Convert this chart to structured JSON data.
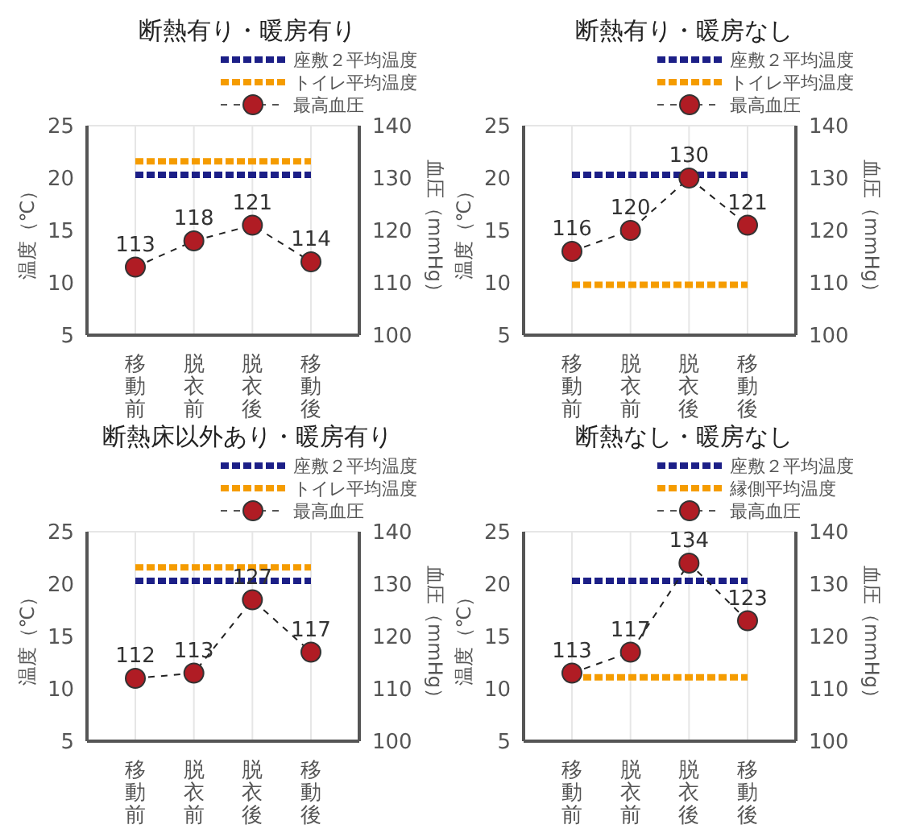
{
  "chart_data": [
    {
      "type": "line",
      "title": "断熱有り・暖房有り",
      "ylabel": "温度（℃）",
      "y2label": "血圧（mmHg）",
      "categories": [
        "移動前",
        "脱衣前",
        "脱衣後",
        "移動後"
      ],
      "ylim": [
        5,
        25
      ],
      "yticks": [
        5,
        10,
        15,
        20,
        25
      ],
      "y2lim": [
        100,
        140
      ],
      "y2ticks": [
        100,
        110,
        120,
        130,
        140
      ],
      "grid": true,
      "legend": "top right",
      "series": [
        {
          "name": "座敷２平均温度",
          "color": "#1c1f87",
          "values": [
            20.3,
            20.3,
            20.3,
            20.3
          ],
          "line_style": "dashed",
          "marker": "none"
        },
        {
          "name": "トイレ平均温度",
          "color": "#f59c00",
          "values": [
            21.6,
            21.6,
            21.6,
            21.6
          ],
          "line_style": "dashed",
          "marker": "none"
        },
        {
          "name": "最高血圧",
          "color": "#b01c24",
          "axis": "y2",
          "values": [
            113,
            118,
            121,
            114
          ],
          "value_labels": [
            "113",
            "118",
            "121",
            "114"
          ],
          "line_style": "dashed",
          "marker": "circle"
        }
      ]
    },
    {
      "type": "line",
      "title": "断熱有り・暖房なし",
      "ylabel": "温度（℃）",
      "y2label": "血圧（mmHg）",
      "categories": [
        "移動前",
        "脱衣前",
        "脱衣後",
        "移動後"
      ],
      "ylim": [
        5,
        25
      ],
      "yticks": [
        5,
        10,
        15,
        20,
        25
      ],
      "y2lim": [
        100,
        140
      ],
      "y2ticks": [
        100,
        110,
        120,
        130,
        140
      ],
      "grid": true,
      "legend": "top right",
      "series": [
        {
          "name": "座敷２平均温度",
          "color": "#1c1f87",
          "values": [
            20.3,
            20.3,
            20.3,
            20.3
          ],
          "line_style": "dashed",
          "marker": "none"
        },
        {
          "name": "トイレ平均温度",
          "color": "#f59c00",
          "values": [
            9.8,
            9.8,
            9.8,
            9.8
          ],
          "line_style": "dashed",
          "marker": "none"
        },
        {
          "name": "最高血圧",
          "color": "#b01c24",
          "axis": "y2",
          "values": [
            116,
            120,
            130,
            121
          ],
          "value_labels": [
            "116",
            "120",
            "130",
            "121"
          ],
          "line_style": "dashed",
          "marker": "circle"
        }
      ]
    },
    {
      "type": "line",
      "title": "断熱床以外あり・暖房有り",
      "ylabel": "温度（℃）",
      "y2label": "血圧（mmHg）",
      "categories": [
        "移動前",
        "脱衣前",
        "脱衣後",
        "移動後"
      ],
      "ylim": [
        5,
        25
      ],
      "yticks": [
        5,
        10,
        15,
        20,
        25
      ],
      "y2lim": [
        100,
        140
      ],
      "y2ticks": [
        100,
        110,
        120,
        130,
        140
      ],
      "grid": true,
      "legend": "top right",
      "series": [
        {
          "name": "座敷２平均温度",
          "color": "#1c1f87",
          "values": [
            20.3,
            20.3,
            20.3,
            20.3
          ],
          "line_style": "dashed",
          "marker": "none"
        },
        {
          "name": "トイレ平均温度",
          "color": "#f59c00",
          "values": [
            21.6,
            21.6,
            21.6,
            21.6
          ],
          "line_style": "dashed",
          "marker": "none"
        },
        {
          "name": "最高血圧",
          "color": "#b01c24",
          "axis": "y2",
          "values": [
            112,
            113,
            127,
            117
          ],
          "value_labels": [
            "112",
            "113",
            "127",
            "117"
          ],
          "line_style": "dashed",
          "marker": "circle"
        }
      ]
    },
    {
      "type": "line",
      "title": "断熱なし・暖房なし",
      "ylabel": "温度（℃）",
      "y2label": "血圧（mmHg）",
      "categories": [
        "移動前",
        "脱衣前",
        "脱衣後",
        "移動後"
      ],
      "ylim": [
        5,
        25
      ],
      "yticks": [
        5,
        10,
        15,
        20,
        25
      ],
      "y2lim": [
        100,
        140
      ],
      "y2ticks": [
        100,
        110,
        120,
        130,
        140
      ],
      "grid": true,
      "legend": "top right",
      "series": [
        {
          "name": "座敷２平均温度",
          "color": "#1c1f87",
          "values": [
            20.3,
            20.3,
            20.3,
            20.3
          ],
          "line_style": "dashed",
          "marker": "none"
        },
        {
          "name": "縁側平均温度",
          "color": "#f59c00",
          "values": [
            11.1,
            11.1,
            11.1,
            11.1
          ],
          "line_style": "dashed",
          "marker": "none"
        },
        {
          "name": "最高血圧",
          "color": "#b01c24",
          "axis": "y2",
          "values": [
            113,
            117,
            134,
            123
          ],
          "value_labels": [
            "113",
            "117",
            "134",
            "123"
          ],
          "line_style": "dashed",
          "marker": "circle"
        }
      ]
    }
  ]
}
